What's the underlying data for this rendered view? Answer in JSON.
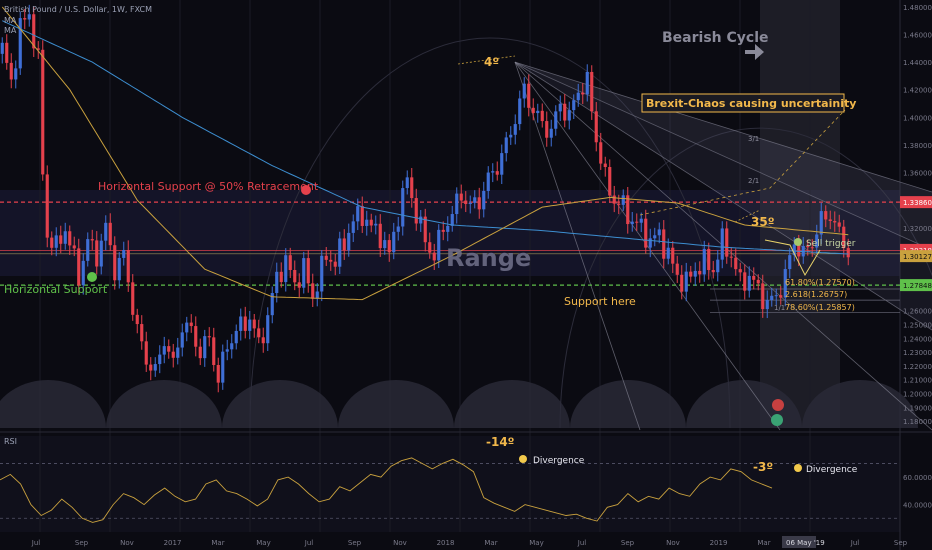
{
  "header": {
    "symbol_line": "British Pound / U.S. Dollar, 1W, FXCM",
    "indicator_ma": "MA",
    "indicator_ma2": "MA"
  },
  "colors": {
    "background": "#0b0b12",
    "bull": "#3f6fd6",
    "bear": "#e5414c",
    "ma_slow": "#3d8ed0",
    "ma_fast": "#c9a13e",
    "support_line": "#5fc04a",
    "resistance_line": "#e5414c",
    "annotation_text": "#f2b84b",
    "rsi_line": "#c9a13e"
  },
  "annotations": {
    "horizontal_support_50": "Horizontal Support @ 50% Retracement",
    "horizontal_support": "Horizontal Support",
    "range": "Range",
    "support_here": "Support here",
    "bearish_cycle": "Bearish Cycle",
    "brexit": "Brexit-Chaos causing uncertainity",
    "sell_trigger": "Sell trigger",
    "angle_top": "4º",
    "angle_right": "35º",
    "fib_1x1": "1/1",
    "fib_2x1": "2/1",
    "fib_3x1": "3/1",
    "fib_618": "61.80%(1.27570)",
    "fib_2618": "2.618(1.26757)",
    "fib_786": "78.60%(1.25857)",
    "rsi_label": "RSI",
    "rsi_angle_top": "-14º",
    "rsi_angle_right": "-3º",
    "divergence_1": "Divergence",
    "divergence_2": "Divergence"
  },
  "price_badges": {
    "resistance": "1.33860",
    "current": "1.30318",
    "ma": "1.30127",
    "support": "1.27848"
  },
  "date_badge": "06 May '19",
  "chart_data": [
    {
      "type": "line",
      "subtype": "candlestick",
      "ylim": [
        1.175,
        1.485
      ],
      "y_ticks": [
        "1.48000",
        "1.46000",
        "1.44000",
        "1.42000",
        "1.40000",
        "1.38000",
        "1.36000",
        "1.34000",
        "1.32000",
        "1.30000",
        "1.28000",
        "1.26000",
        "1.25000",
        "1.24000",
        "1.23000",
        "1.22000",
        "1.21000",
        "1.20000",
        "1.19000",
        "1.18000"
      ],
      "x_ticks": [
        "Jul",
        "Sep",
        "Nov",
        "2017",
        "Mar",
        "May",
        "Jul",
        "Sep",
        "Nov",
        "2018",
        "Mar",
        "May",
        "Jul",
        "Sep",
        "Nov",
        "2019",
        "Mar",
        "May",
        "Jul",
        "Sep"
      ],
      "close_anchors": [
        [
          0,
          1.45
        ],
        [
          2,
          1.425
        ],
        [
          4,
          1.465
        ],
        [
          6,
          1.475
        ],
        [
          8,
          1.44
        ],
        [
          9,
          1.36
        ],
        [
          10,
          1.315
        ],
        [
          12,
          1.305
        ],
        [
          14,
          1.32
        ],
        [
          17,
          1.285
        ],
        [
          19,
          1.31
        ],
        [
          21,
          1.3
        ],
        [
          23,
          1.32
        ],
        [
          25,
          1.29
        ],
        [
          27,
          1.3
        ],
        [
          30,
          1.245
        ],
        [
          32,
          1.225
        ],
        [
          34,
          1.215
        ],
        [
          36,
          1.24
        ],
        [
          38,
          1.22
        ],
        [
          40,
          1.25
        ],
        [
          42,
          1.245
        ],
        [
          44,
          1.23
        ],
        [
          46,
          1.24
        ],
        [
          48,
          1.21
        ],
        [
          50,
          1.235
        ],
        [
          52,
          1.245
        ],
        [
          55,
          1.255
        ],
        [
          57,
          1.235
        ],
        [
          59,
          1.255
        ],
        [
          61,
          1.285
        ],
        [
          63,
          1.295
        ],
        [
          65,
          1.28
        ],
        [
          67,
          1.29
        ],
        [
          69,
          1.27
        ],
        [
          72,
          1.3
        ],
        [
          74,
          1.295
        ],
        [
          76,
          1.31
        ],
        [
          78,
          1.325
        ],
        [
          80,
          1.33
        ],
        [
          82,
          1.32
        ],
        [
          84,
          1.315
        ],
        [
          86,
          1.3
        ],
        [
          88,
          1.33
        ],
        [
          90,
          1.355
        ],
        [
          92,
          1.33
        ],
        [
          94,
          1.31
        ],
        [
          96,
          1.3
        ],
        [
          98,
          1.32
        ],
        [
          100,
          1.33
        ],
        [
          102,
          1.345
        ],
        [
          104,
          1.335
        ],
        [
          106,
          1.34
        ],
        [
          108,
          1.355
        ],
        [
          110,
          1.365
        ],
        [
          112,
          1.38
        ],
        [
          114,
          1.4
        ],
        [
          116,
          1.42
        ],
        [
          118,
          1.405
        ],
        [
          120,
          1.395
        ],
        [
          122,
          1.39
        ],
        [
          124,
          1.41
        ],
        [
          126,
          1.4
        ],
        [
          128,
          1.42
        ],
        [
          130,
          1.425
        ],
        [
          132,
          1.385
        ],
        [
          134,
          1.355
        ],
        [
          136,
          1.34
        ],
        [
          138,
          1.335
        ],
        [
          140,
          1.325
        ],
        [
          142,
          1.32
        ],
        [
          144,
          1.31
        ],
        [
          146,
          1.315
        ],
        [
          148,
          1.3
        ],
        [
          150,
          1.285
        ],
        [
          152,
          1.28
        ],
        [
          154,
          1.29
        ],
        [
          156,
          1.295
        ],
        [
          158,
          1.29
        ],
        [
          160,
          1.31
        ],
        [
          162,
          1.3
        ],
        [
          164,
          1.28
        ],
        [
          166,
          1.285
        ],
        [
          168,
          1.275
        ],
        [
          170,
          1.265
        ],
        [
          172,
          1.27
        ],
        [
          174,
          1.285
        ],
        [
          176,
          1.31
        ],
        [
          178,
          1.3
        ],
        [
          180,
          1.31
        ],
        [
          182,
          1.325
        ],
        [
          184,
          1.33
        ],
        [
          186,
          1.315
        ],
        [
          188,
          1.303
        ]
      ],
      "series": [
        {
          "name": "MA",
          "values_at": [
            [
              0,
              1.47
            ],
            [
              20,
              1.44
            ],
            [
              40,
              1.4
            ],
            [
              60,
              1.365
            ],
            [
              80,
              1.335
            ],
            [
              100,
              1.322
            ],
            [
              120,
              1.318
            ],
            [
              140,
              1.312
            ],
            [
              160,
              1.306
            ],
            [
              188,
              1.301
            ]
          ]
        },
        {
          "name": "MA",
          "values_at": [
            [
              0,
              1.48
            ],
            [
              15,
              1.42
            ],
            [
              30,
              1.34
            ],
            [
              45,
              1.29
            ],
            [
              60,
              1.27
            ],
            [
              80,
              1.268
            ],
            [
              100,
              1.3
            ],
            [
              120,
              1.335
            ],
            [
              135,
              1.342
            ],
            [
              150,
              1.338
            ],
            [
              165,
              1.322
            ],
            [
              188,
              1.315
            ]
          ]
        }
      ]
    },
    {
      "type": "line",
      "name": "RSI",
      "ylim": [
        20,
        90
      ],
      "y_ticks": [
        "60.0000",
        "40.0000"
      ],
      "values": [
        58,
        62,
        55,
        40,
        32,
        36,
        44,
        38,
        30,
        27,
        29,
        40,
        48,
        45,
        40,
        47,
        52,
        46,
        42,
        44,
        55,
        58,
        50,
        48,
        44,
        39,
        44,
        58,
        60,
        55,
        48,
        42,
        44,
        53,
        50,
        56,
        62,
        60,
        68,
        72,
        74,
        70,
        66,
        70,
        73,
        69,
        64,
        45,
        41,
        38,
        35,
        40,
        38,
        36,
        34,
        32,
        33,
        30,
        28,
        38,
        40,
        48,
        42,
        46,
        44,
        52,
        48,
        46,
        55,
        60,
        58,
        66,
        64,
        58,
        55,
        52
      ]
    }
  ]
}
